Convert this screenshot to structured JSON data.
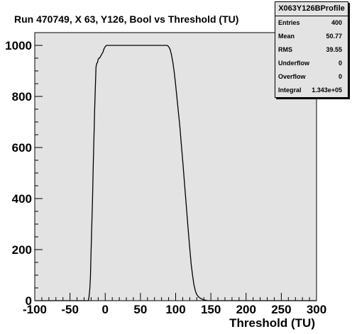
{
  "chart_data": {
    "type": "line",
    "title": "Run 470749, X 63, Y126, Bool vs Threshold (TU)",
    "xlabel": "Threshold (TU)",
    "ylabel": "",
    "xlim": [
      -100,
      300
    ],
    "ylim": [
      0,
      1050
    ],
    "x_ticks": [
      -100,
      -50,
      0,
      50,
      100,
      150,
      200,
      250,
      300
    ],
    "y_ticks": [
      0,
      200,
      400,
      600,
      800,
      1000
    ],
    "grid": false,
    "frame_fill": "#e3e3e3",
    "line_color": "#000000",
    "series": [
      {
        "x": [
          -100,
          -24,
          -23,
          -22,
          -21,
          -20,
          -19,
          -18,
          -17,
          -16,
          -15,
          -14,
          -13,
          -12,
          -11,
          -10,
          -9,
          -8,
          -7,
          -6,
          -5,
          -4,
          -3,
          -2,
          -1,
          0,
          1,
          2,
          3,
          4,
          5,
          10,
          20,
          40,
          60,
          80,
          86,
          88,
          90,
          92,
          94,
          96,
          98,
          100,
          102,
          104,
          106,
          108,
          110,
          112,
          114,
          116,
          118,
          120,
          122,
          124,
          126,
          128,
          130,
          132,
          134,
          136,
          138,
          140,
          142,
          144,
          146,
          148,
          300
        ],
        "y": [
          0,
          0,
          15,
          40,
          90,
          200,
          300,
          400,
          530,
          640,
          750,
          840,
          915,
          930,
          932,
          945,
          950,
          950,
          955,
          960,
          965,
          970,
          975,
          985,
          990,
          995,
          998,
          1000,
          1000,
          1000,
          1000,
          1000,
          1000,
          1000,
          1000,
          1000,
          1000,
          1000,
          995,
          985,
          965,
          935,
          895,
          845,
          790,
          735,
          680,
          615,
          550,
          480,
          410,
          340,
          270,
          205,
          145,
          100,
          62,
          38,
          24,
          16,
          12,
          8,
          5,
          3,
          2,
          1,
          0,
          0,
          0
        ]
      }
    ]
  },
  "stats": {
    "title": "X063Y126BProfile",
    "rows": [
      {
        "label": "Entries",
        "value": "400"
      },
      {
        "label": "Mean",
        "value": "50.77"
      },
      {
        "label": "RMS",
        "value": "39.55"
      },
      {
        "label": "Underflow",
        "value": "0"
      },
      {
        "label": "Overflow",
        "value": "0"
      },
      {
        "label": "Integral",
        "value": "1.343e+05"
      }
    ]
  }
}
